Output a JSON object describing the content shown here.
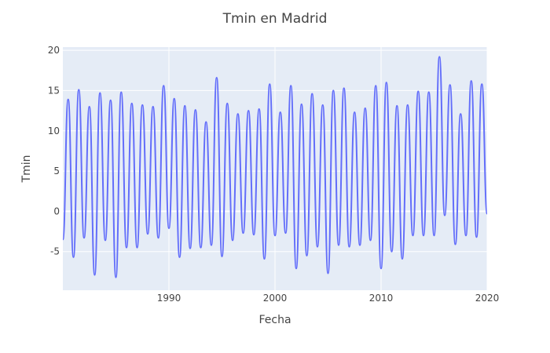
{
  "chart_data": {
    "type": "line",
    "title": "Tmin en Madrid",
    "xlabel": "Fecha",
    "ylabel": "Tmin",
    "xlim": [
      1980.0,
      2020.0
    ],
    "ylim": [
      -9.8,
      20.4
    ],
    "x_ticks": [
      1990,
      2000,
      2010,
      2020
    ],
    "y_ticks": [
      -5,
      0,
      5,
      10,
      15,
      20
    ],
    "grid": true,
    "background": "#e5ecf6",
    "series": [
      {
        "color": "#636efa",
        "x": [
          1980.0,
          1980.5,
          1981.0,
          1981.5,
          1982.0,
          1982.5,
          1983.0,
          1983.5,
          1984.0,
          1984.5,
          1985.0,
          1985.5,
          1986.0,
          1986.5,
          1987.0,
          1987.5,
          1988.0,
          1988.5,
          1989.0,
          1989.5,
          1990.0,
          1990.5,
          1991.0,
          1991.5,
          1992.0,
          1992.5,
          1993.0,
          1993.5,
          1994.0,
          1994.5,
          1995.0,
          1995.5,
          1996.0,
          1996.5,
          1997.0,
          1997.5,
          1998.0,
          1998.5,
          1999.0,
          1999.5,
          2000.0,
          2000.5,
          2001.0,
          2001.5,
          2002.0,
          2002.5,
          2003.0,
          2003.5,
          2004.0,
          2004.5,
          2005.0,
          2005.5,
          2006.0,
          2006.5,
          2007.0,
          2007.5,
          2008.0,
          2008.5,
          2009.0,
          2009.5,
          2010.0,
          2010.5,
          2011.0,
          2011.5,
          2012.0,
          2012.5,
          2013.0,
          2013.5,
          2014.0,
          2014.5,
          2015.0,
          2015.5,
          2016.0,
          2016.5,
          2017.0,
          2017.5,
          2018.0,
          2018.5,
          2019.0,
          2019.5,
          2020.0
        ],
        "y": [
          -3.5,
          13.9,
          -5.7,
          15.1,
          -3.3,
          13.0,
          -7.9,
          14.7,
          -3.6,
          13.8,
          -8.2,
          14.8,
          -4.5,
          13.4,
          -4.5,
          13.2,
          -2.8,
          13.0,
          -3.3,
          15.6,
          -2.1,
          14.0,
          -5.7,
          13.1,
          -4.6,
          12.6,
          -4.5,
          11.1,
          -4.2,
          16.6,
          -5.6,
          13.4,
          -3.6,
          12.1,
          -2.7,
          12.5,
          -2.9,
          12.7,
          -5.9,
          15.8,
          -3.0,
          12.3,
          -2.7,
          15.6,
          -7.1,
          13.3,
          -5.5,
          14.6,
          -4.4,
          13.2,
          -7.7,
          15.0,
          -4.2,
          15.3,
          -4.4,
          12.3,
          -4.2,
          12.8,
          -3.6,
          15.6,
          -7.1,
          16.0,
          -5.0,
          13.1,
          -5.9,
          13.2,
          -3.0,
          14.9,
          -3.0,
          14.8,
          -3.0,
          19.2,
          -0.5,
          15.7,
          -4.1,
          12.1,
          -3.0,
          16.2,
          -3.2,
          15.8,
          -0.3
        ]
      }
    ]
  }
}
